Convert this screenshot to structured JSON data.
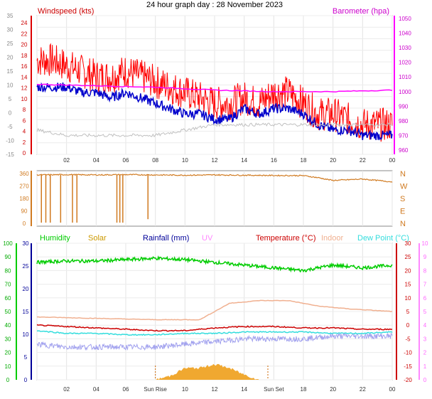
{
  "header": {
    "title": "24 hour graph day : 28 November 2023"
  },
  "chart_data": [
    {
      "panel": "wind-baro",
      "type": "line",
      "x_ticks": [
        "02",
        "04",
        "06",
        "08",
        "10",
        "12",
        "14",
        "16",
        "18",
        "20",
        "22",
        "00"
      ],
      "left_label": "Windspeed (kts)",
      "right_label": "Barometer (hpa)",
      "left_axis_ticks": [
        "24",
        "22",
        "20",
        "18",
        "16",
        "14",
        "12",
        "10",
        "8",
        "6",
        "4",
        "2",
        "0"
      ],
      "left_axis_ticks_outer": [
        "35",
        "30",
        "25",
        "20",
        "15",
        "10",
        "5",
        "0",
        "-5",
        "-10",
        "-15"
      ],
      "right_axis_ticks": [
        "1050",
        "1040",
        "1030",
        "1020",
        "1010",
        "1000",
        "990",
        "980",
        "970",
        "960"
      ],
      "ylim_left": [
        0,
        24
      ],
      "ylim_right": [
        960,
        1050
      ],
      "series": [
        {
          "name": "Windspeed gust",
          "color": "#ff0000",
          "axis": "left",
          "x": [
            0,
            1,
            2,
            3,
            4,
            5,
            6,
            7,
            8,
            9,
            10,
            11,
            12,
            13,
            14,
            15,
            16,
            17,
            18,
            19,
            20,
            21,
            22,
            23,
            24
          ],
          "values": [
            17,
            17,
            16,
            15,
            14,
            14,
            15,
            14,
            13,
            12,
            11,
            10,
            9,
            9,
            10,
            9,
            11,
            11,
            9,
            7,
            7,
            6,
            5,
            5,
            5
          ]
        },
        {
          "name": "Windspeed avg",
          "color": "#0000cc",
          "axis": "left",
          "x": [
            0,
            1,
            2,
            3,
            4,
            5,
            6,
            7,
            8,
            9,
            10,
            11,
            12,
            13,
            14,
            15,
            16,
            17,
            18,
            19,
            20,
            21,
            22,
            23,
            24
          ],
          "values": [
            12,
            12,
            12,
            11,
            11,
            10,
            11,
            10,
            9,
            8,
            7,
            7,
            6,
            6,
            8,
            7,
            8,
            8,
            7,
            5,
            4,
            4,
            3,
            3,
            3
          ]
        },
        {
          "name": "Barometer",
          "color": "#ff00ff",
          "axis": "right",
          "x": [
            0,
            4,
            8,
            12,
            16,
            20,
            24
          ],
          "values": [
            1005,
            1004,
            1003,
            1001,
            1000,
            1000,
            1001
          ]
        },
        {
          "name": "Indoor",
          "color": "#c0c0c0",
          "axis": "left",
          "x": [
            0,
            2,
            4,
            6,
            8,
            10,
            12,
            14,
            16,
            18,
            20,
            22,
            24
          ],
          "values": [
            4,
            3,
            3,
            3,
            3,
            4,
            5,
            5,
            5,
            5,
            5,
            5,
            5
          ]
        }
      ]
    },
    {
      "panel": "wind-direction",
      "type": "scatter",
      "left_axis_ticks": [
        "360",
        "270",
        "180",
        "90",
        "0"
      ],
      "right_axis_ticks": [
        "N",
        "W",
        "S",
        "E",
        "N"
      ],
      "ylim": [
        0,
        360
      ],
      "series": [
        {
          "name": "Wind direction",
          "color": "#d07a20",
          "x": [
            0,
            2,
            4,
            6,
            8,
            10,
            12,
            14,
            16,
            18,
            19,
            20,
            22,
            24
          ],
          "values": [
            350,
            352,
            350,
            352,
            350,
            348,
            350,
            348,
            346,
            345,
            330,
            310,
            320,
            300
          ]
        }
      ]
    },
    {
      "panel": "temp-humidity",
      "type": "line",
      "legend": [
        "Humidity",
        "Solar",
        "Rainfall (mm)",
        "UV",
        "Temperature (°C)",
        "Indoor",
        "Dew Point (°C)"
      ],
      "legend_colors": [
        "#00cc00",
        "#cc9900",
        "#000099",
        "#ff88ff",
        "#cc0000",
        "#f0b090",
        "#33dddd"
      ],
      "x_ticks": [
        "02",
        "04",
        "06",
        "Sun Rise",
        "10",
        "12",
        "14",
        "Sun Set",
        "18",
        "20",
        "22",
        "00"
      ],
      "far_left_ticks": [
        "100",
        "90",
        "80",
        "70",
        "60",
        "50",
        "40",
        "30",
        "20",
        "10",
        "0"
      ],
      "left_axis_ticks": [
        "30",
        "25",
        "20",
        "15",
        "10",
        "5",
        "0"
      ],
      "right_axis_ticks": [
        "30",
        "25",
        "20",
        "15",
        "10",
        "5",
        "0",
        "-5",
        "-10",
        "-15",
        "-20"
      ],
      "far_right_ticks": [
        "10",
        "9",
        "8",
        "7",
        "6",
        "5",
        "4",
        "3",
        "2",
        "1",
        "0"
      ],
      "series": [
        {
          "name": "Humidity",
          "color": "#00cc00",
          "x": [
            0,
            2,
            4,
            6,
            8,
            10,
            12,
            14,
            16,
            18,
            20,
            22,
            24
          ],
          "values": [
            86,
            87,
            87,
            88,
            89,
            88,
            86,
            84,
            82,
            80,
            84,
            82,
            84
          ]
        },
        {
          "name": "Indoor",
          "color": "#f0b090",
          "x": [
            0,
            4,
            8,
            11,
            13,
            15,
            17,
            19,
            21,
            24
          ],
          "values": [
            3,
            2.5,
            2,
            2,
            8,
            9,
            9,
            7,
            6,
            5
          ]
        },
        {
          "name": "Temperature (°C)",
          "color": "#cc0000",
          "x": [
            0,
            2,
            4,
            6,
            8,
            10,
            12,
            14,
            16,
            18,
            20,
            22,
            24
          ],
          "values": [
            0,
            -0.5,
            -1,
            -1.5,
            -2,
            -2,
            -1,
            -0.5,
            -0.5,
            -1,
            -1,
            -1.5,
            -1.5
          ]
        },
        {
          "name": "Dew Point (°C)",
          "color": "#33dddd",
          "x": [
            0,
            2,
            4,
            6,
            8,
            10,
            12,
            14,
            16,
            18,
            20,
            22,
            24
          ],
          "values": [
            -2,
            -3,
            -3,
            -3.5,
            -3.5,
            -3,
            -3,
            -2.5,
            -2.5,
            -2.5,
            -3,
            -3,
            -2.5
          ]
        },
        {
          "name": "Wind chill",
          "color": "#a0a0ee",
          "x": [
            0,
            2,
            4,
            6,
            8,
            10,
            12,
            14,
            16,
            18,
            20,
            22,
            24
          ],
          "values": [
            -7,
            -8,
            -8,
            -8,
            -8,
            -7,
            -6,
            -5,
            -5,
            -5,
            -4,
            -4,
            -4
          ]
        },
        {
          "name": "Solar",
          "color": "#f0a830",
          "fill": true,
          "x": [
            8,
            9,
            10,
            11,
            12,
            13,
            14,
            15
          ],
          "values": [
            0,
            0.3,
            0.9,
            0.9,
            1.2,
            0.9,
            0.4,
            0
          ]
        }
      ]
    }
  ]
}
